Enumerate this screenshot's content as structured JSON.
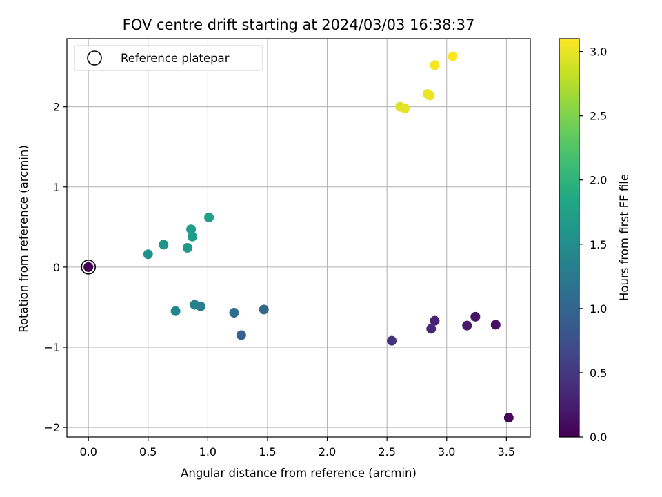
{
  "chart_data": {
    "type": "scatter",
    "title": "FOV centre drift starting at 2024/03/03 16:38:37",
    "xlabel": "Angular distance from reference (arcmin)",
    "ylabel": "Rotation from reference (arcmin)",
    "xlim": [
      -0.18,
      3.7
    ],
    "ylim": [
      -2.12,
      2.85
    ],
    "xticks": [
      0.0,
      0.5,
      1.0,
      1.5,
      2.0,
      2.5,
      3.0,
      3.5
    ],
    "xtick_labels": [
      "0.0",
      "0.5",
      "1.0",
      "1.5",
      "2.0",
      "2.5",
      "3.0",
      "3.5"
    ],
    "yticks": [
      -2,
      -1,
      0,
      1,
      2
    ],
    "ytick_labels": [
      "−2",
      "−1",
      "0",
      "1",
      "2"
    ],
    "grid": true,
    "legend": {
      "position": "top-left",
      "entries": [
        "Reference platepar"
      ]
    },
    "reference_point": {
      "x": 0.0,
      "y": 0.0
    },
    "colorbar": {
      "label": "Hours from first FF file",
      "colormap": "viridis",
      "range": [
        0.0,
        3.1
      ],
      "ticks": [
        0.0,
        0.5,
        1.0,
        1.5,
        2.0,
        2.5,
        3.0
      ],
      "tick_labels": [
        "0.0",
        "0.5",
        "1.0",
        "1.5",
        "2.0",
        "2.5",
        "3.0"
      ]
    },
    "points": [
      {
        "x": 0.0,
        "y": 0.0,
        "hours": 0.0
      },
      {
        "x": 3.52,
        "y": -1.88,
        "hours": 0.05
      },
      {
        "x": 3.41,
        "y": -0.72,
        "hours": 0.12
      },
      {
        "x": 3.24,
        "y": -0.62,
        "hours": 0.18
      },
      {
        "x": 3.17,
        "y": -0.73,
        "hours": 0.22
      },
      {
        "x": 2.9,
        "y": -0.67,
        "hours": 0.3
      },
      {
        "x": 2.87,
        "y": -0.77,
        "hours": 0.35
      },
      {
        "x": 2.54,
        "y": -0.92,
        "hours": 0.45
      },
      {
        "x": 1.28,
        "y": -0.85,
        "hours": 0.95
      },
      {
        "x": 1.47,
        "y": -0.53,
        "hours": 1.05
      },
      {
        "x": 1.22,
        "y": -0.57,
        "hours": 1.1
      },
      {
        "x": 0.94,
        "y": -0.49,
        "hours": 1.3
      },
      {
        "x": 0.89,
        "y": -0.47,
        "hours": 1.35
      },
      {
        "x": 0.73,
        "y": -0.55,
        "hours": 1.4
      },
      {
        "x": 0.5,
        "y": 0.16,
        "hours": 1.55
      },
      {
        "x": 0.63,
        "y": 0.28,
        "hours": 1.6
      },
      {
        "x": 0.83,
        "y": 0.24,
        "hours": 1.65
      },
      {
        "x": 0.87,
        "y": 0.38,
        "hours": 1.7
      },
      {
        "x": 0.86,
        "y": 0.47,
        "hours": 1.72
      },
      {
        "x": 1.01,
        "y": 0.62,
        "hours": 1.75
      },
      {
        "x": 2.61,
        "y": 2.0,
        "hours": 2.95
      },
      {
        "x": 2.65,
        "y": 1.98,
        "hours": 2.97
      },
      {
        "x": 2.84,
        "y": 2.16,
        "hours": 3.0
      },
      {
        "x": 2.86,
        "y": 2.14,
        "hours": 3.02
      },
      {
        "x": 2.9,
        "y": 2.52,
        "hours": 3.05
      },
      {
        "x": 3.05,
        "y": 2.63,
        "hours": 3.08
      }
    ]
  }
}
